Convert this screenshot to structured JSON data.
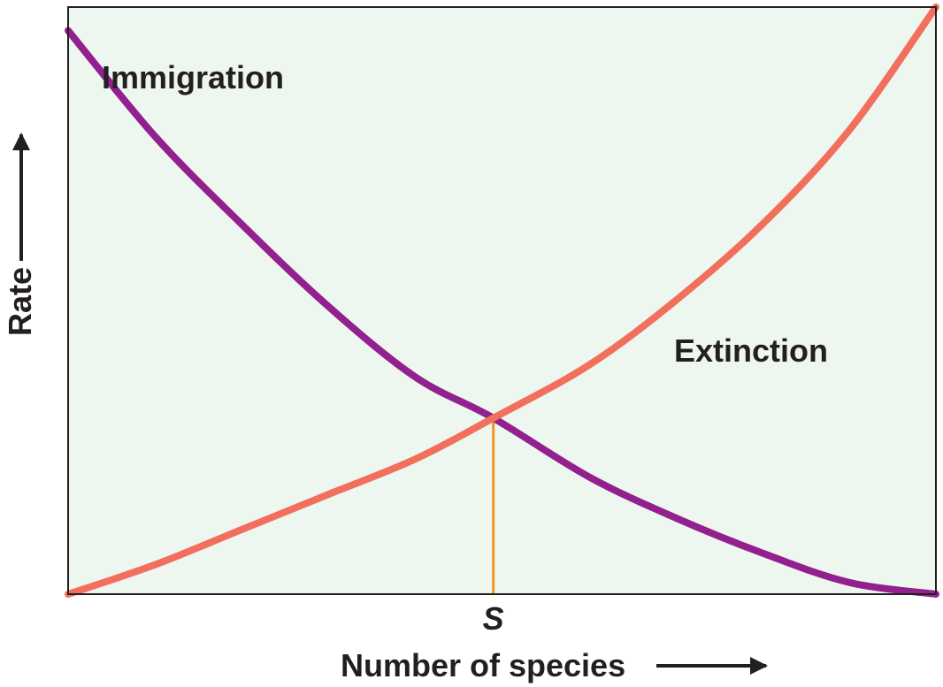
{
  "chart_data": {
    "type": "line",
    "xlabel": "Number of species",
    "ylabel": "Rate",
    "x_tick_labels": [
      {
        "x": 0.49,
        "label": "S"
      }
    ],
    "xlim": [
      0,
      1
    ],
    "ylim": [
      0,
      1
    ],
    "grid": false,
    "legend": "none",
    "series": [
      {
        "name": "Immigration",
        "color": "#93208f",
        "x": [
          0,
          0.1,
          0.2,
          0.3,
          0.4,
          0.49,
          0.6,
          0.7,
          0.8,
          0.9,
          1.0
        ],
        "y": [
          0.96,
          0.78,
          0.63,
          0.49,
          0.37,
          0.3,
          0.2,
          0.13,
          0.07,
          0.02,
          0.0
        ]
      },
      {
        "name": "Extinction",
        "color": "#f26f5e",
        "x": [
          0,
          0.1,
          0.2,
          0.3,
          0.4,
          0.49,
          0.6,
          0.7,
          0.8,
          0.9,
          1.0
        ],
        "y": [
          0.0,
          0.05,
          0.11,
          0.17,
          0.23,
          0.3,
          0.39,
          0.5,
          0.63,
          0.79,
          1.0
        ]
      }
    ],
    "equilibrium_line": {
      "x": 0.49,
      "color": "#f0961f"
    },
    "colors": {
      "plot_background": "#eef7ef",
      "frame": "#231f20",
      "arrows": "#231f20"
    }
  }
}
